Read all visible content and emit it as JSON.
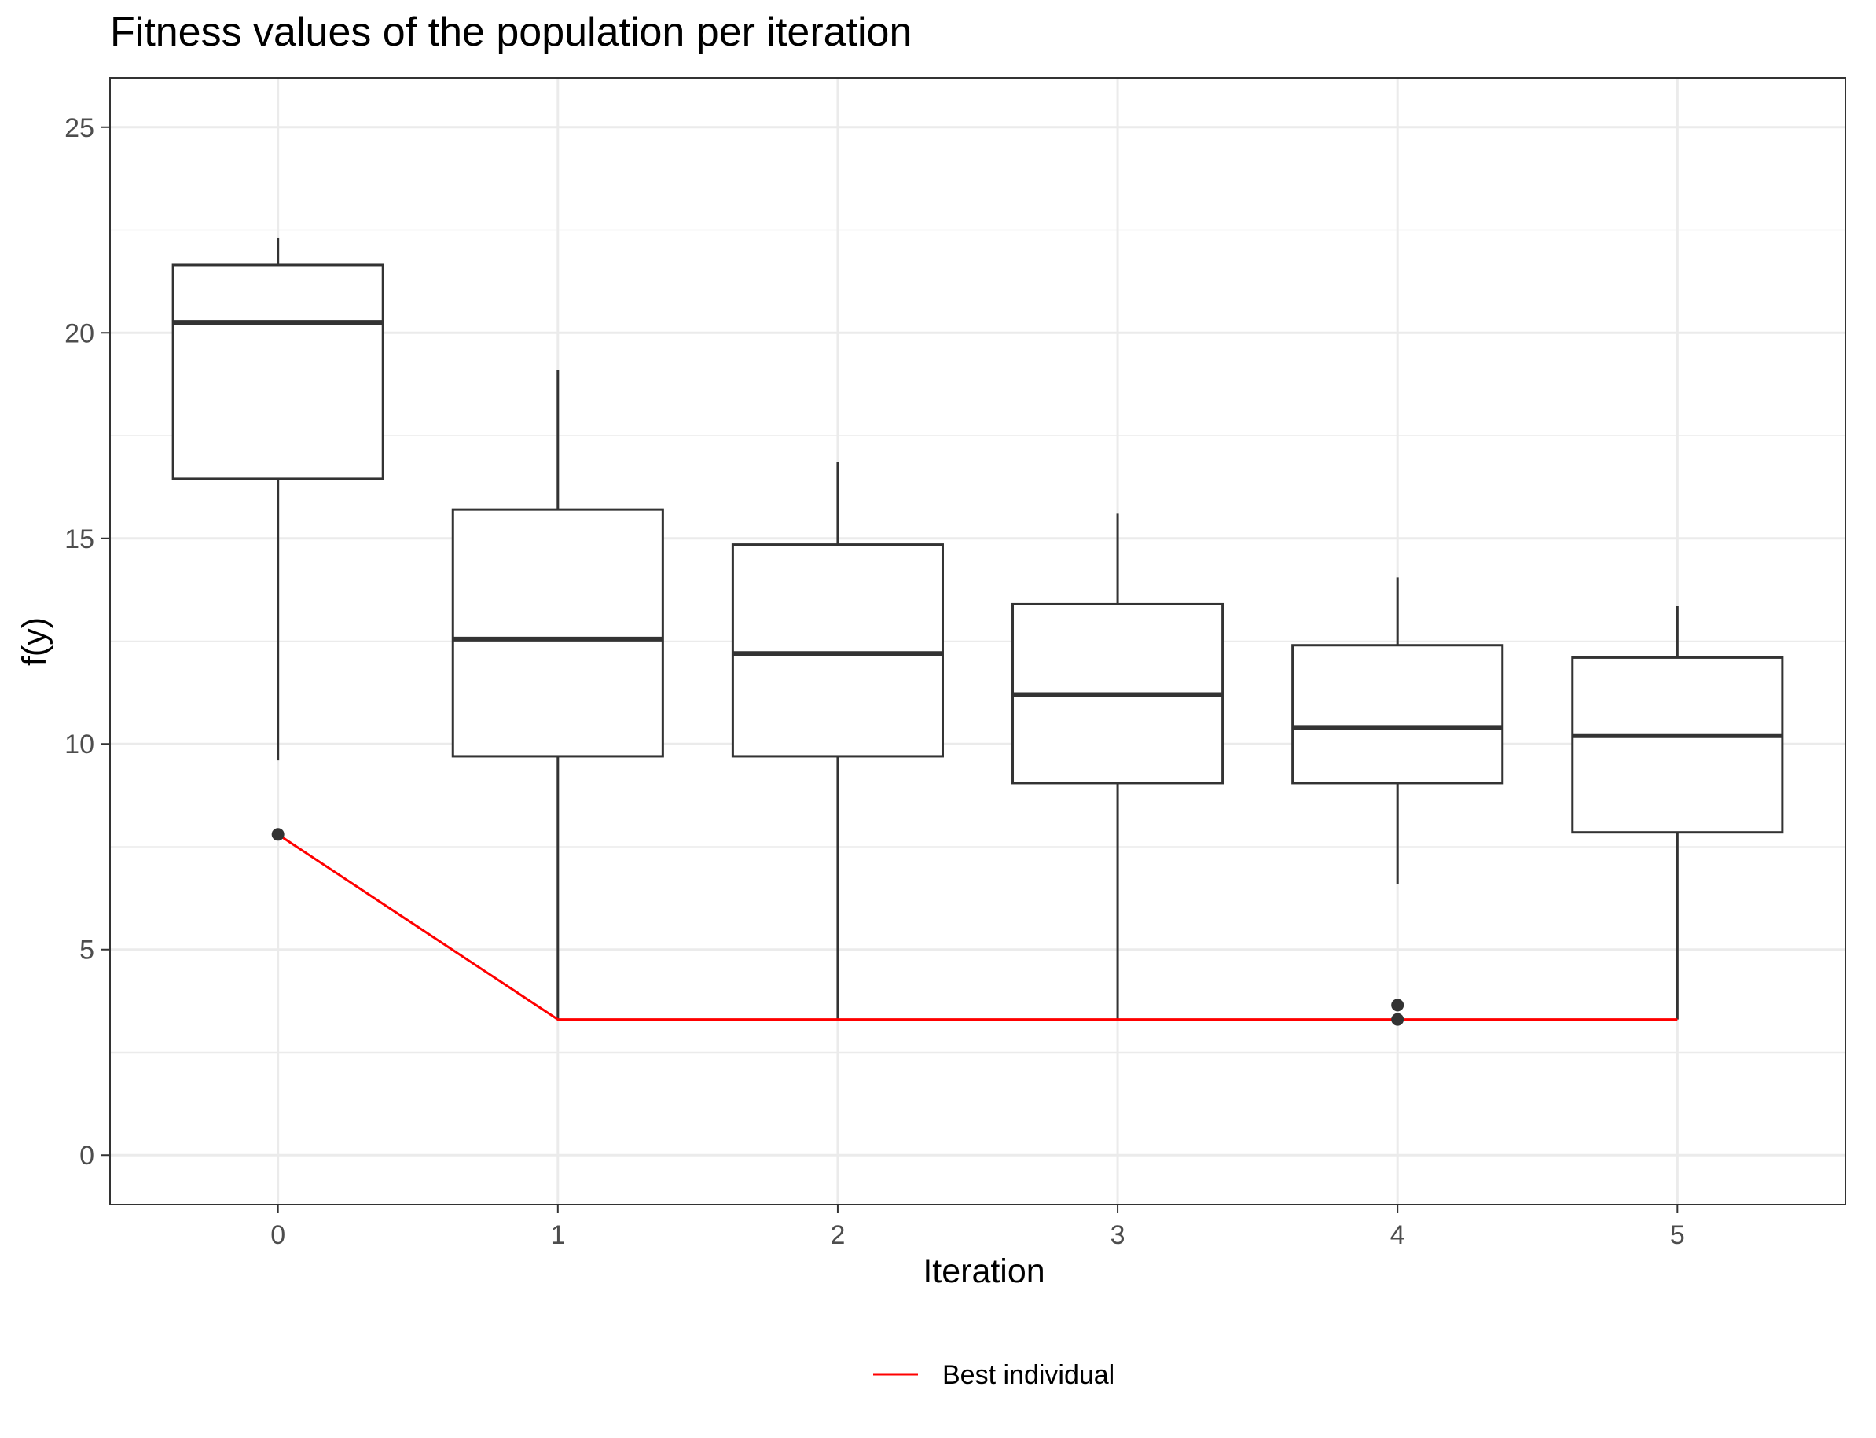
{
  "chart_data": {
    "type": "boxplot",
    "title": "Fitness values of the population per iteration",
    "xlabel": "Iteration",
    "ylabel": "f(y)",
    "categories": [
      "0",
      "1",
      "2",
      "3",
      "4",
      "5"
    ],
    "ylim": [
      -1.2,
      26.2
    ],
    "yticks": [
      0,
      5,
      10,
      15,
      20,
      25
    ],
    "y_minor_ticks": [
      2.5,
      7.5,
      12.5,
      17.5,
      22.5
    ],
    "grid": true,
    "boxes": [
      {
        "iteration": "0",
        "whisker_low": 9.6,
        "q1": 16.45,
        "median": 20.25,
        "q3": 21.65,
        "whisker_high": 22.3,
        "outliers": [
          7.8
        ]
      },
      {
        "iteration": "1",
        "whisker_low": 3.3,
        "q1": 9.7,
        "median": 12.55,
        "q3": 15.7,
        "whisker_high": 19.1,
        "outliers": []
      },
      {
        "iteration": "2",
        "whisker_low": 3.3,
        "q1": 9.7,
        "median": 12.2,
        "q3": 14.85,
        "whisker_high": 16.85,
        "outliers": []
      },
      {
        "iteration": "3",
        "whisker_low": 3.3,
        "q1": 9.05,
        "median": 11.2,
        "q3": 13.4,
        "whisker_high": 15.6,
        "outliers": []
      },
      {
        "iteration": "4",
        "whisker_low": 6.6,
        "q1": 9.05,
        "median": 10.4,
        "q3": 12.4,
        "whisker_high": 14.05,
        "outliers": [
          3.65,
          3.3
        ]
      },
      {
        "iteration": "5",
        "whisker_low": 3.3,
        "q1": 7.85,
        "median": 10.2,
        "q3": 12.1,
        "whisker_high": 13.35,
        "outliers": []
      }
    ],
    "series": [
      {
        "name": "Best individual",
        "type": "line",
        "color": "#ff0000",
        "x": [
          "0",
          "1",
          "2",
          "3",
          "4",
          "5"
        ],
        "values": [
          7.8,
          3.3,
          3.3,
          3.3,
          3.3,
          3.3
        ]
      }
    ],
    "legend": {
      "position": "bottom",
      "entries": [
        "Best individual"
      ]
    },
    "colors": {
      "box": "#333333",
      "grid": "#ebebeb",
      "axis_text": "#4d4d4d",
      "best_line": "#ff0000"
    }
  }
}
